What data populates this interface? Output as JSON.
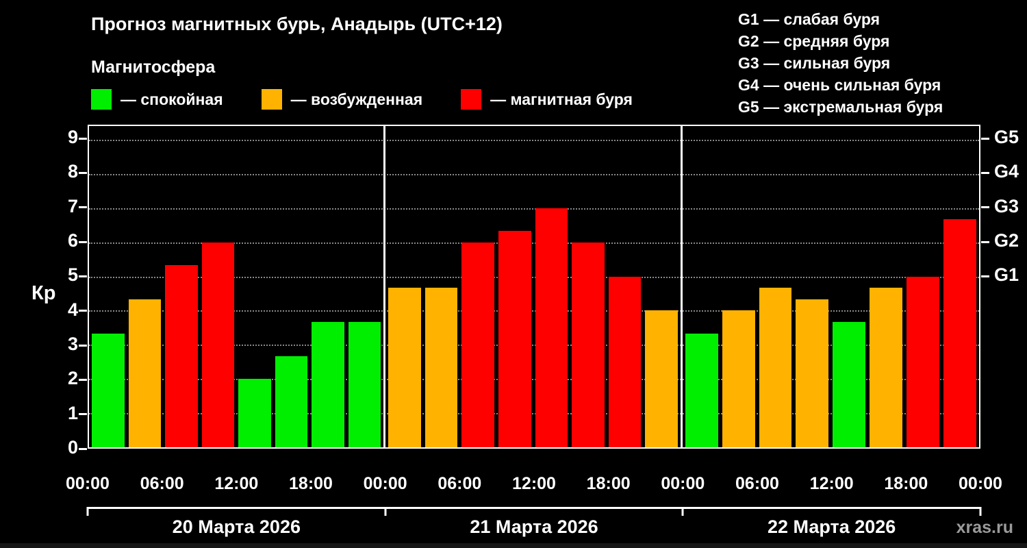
{
  "header": {
    "title": "Прогноз магнитных бурь, Анадырь (UTC+12)",
    "subtitle": "Магнитосфера"
  },
  "legend": {
    "items": [
      {
        "label": "— спокойная",
        "color": "#00ee00"
      },
      {
        "label": "— возбужденная",
        "color": "#ffb200"
      },
      {
        "label": "— магнитная буря",
        "color": "#ff0000"
      }
    ]
  },
  "g_legend": {
    "items": [
      "G1 — слабая буря",
      "G2 — средняя буря",
      "G3 — сильная буря",
      "G4 — очень сильная буря",
      "G5 — экстремальная буря"
    ]
  },
  "axes": {
    "y_label": "Кр",
    "y_ticks": [
      0,
      1,
      2,
      3,
      4,
      5,
      6,
      7,
      8,
      9
    ],
    "right_ticks": [
      {
        "label": "G5",
        "value": 9
      },
      {
        "label": "G4",
        "value": 8
      },
      {
        "label": "G3",
        "value": 7
      },
      {
        "label": "G2",
        "value": 6
      },
      {
        "label": "G1",
        "value": 5
      }
    ],
    "x_ticks": [
      "00:00",
      "06:00",
      "12:00",
      "18:00"
    ],
    "x_end_tick": "00:00"
  },
  "footer": {
    "watermark": "xras.ru"
  },
  "chart_data": {
    "type": "bar",
    "title": "Прогноз магнитных бурь, Анадырь (UTC+12)",
    "ylabel": "Кр",
    "ylim": [
      0,
      9.4
    ],
    "grid": "dotted horizontal at integers 1-9",
    "legend_position": "top-left",
    "interval_hours": 3,
    "days": [
      {
        "date": "20 Марта 2026",
        "values": [
          3.33,
          4.33,
          5.33,
          6.0,
          2.0,
          2.67,
          3.67,
          3.67
        ]
      },
      {
        "date": "21 Марта 2026",
        "values": [
          4.67,
          4.67,
          6.0,
          6.33,
          7.0,
          6.0,
          5.0,
          4.0
        ]
      },
      {
        "date": "22 Марта 2026",
        "values": [
          3.33,
          4.0,
          4.67,
          4.33,
          3.67,
          4.67,
          5.0,
          6.67
        ]
      }
    ],
    "thresholds": {
      "active": 4,
      "storm": 5
    },
    "colors": {
      "quiet": "#00ee00",
      "active": "#ffb200",
      "storm": "#ff0000"
    }
  }
}
